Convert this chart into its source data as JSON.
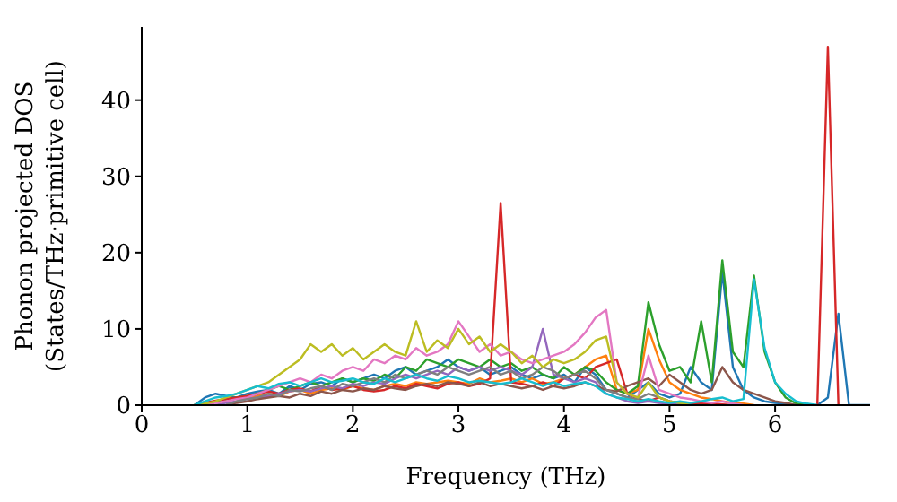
{
  "chart_data": {
    "type": "line",
    "xlabel": "Frequency (THz)",
    "ylabel": "Phonon projected DOS\n(States/THz·primitive cell)",
    "x": [
      0.5,
      0.6,
      0.7,
      0.8,
      0.9,
      1,
      1.1,
      1.2,
      1.3,
      1.4,
      1.5,
      1.6,
      1.7,
      1.8,
      1.9,
      2,
      2.1,
      2.2,
      2.3,
      2.4,
      2.5,
      2.6,
      2.7,
      2.8,
      2.9,
      3,
      3.1,
      3.2,
      3.3,
      3.4,
      3.5,
      3.6,
      3.7,
      3.8,
      3.9,
      4,
      4.1,
      4.2,
      4.3,
      4.4,
      4.5,
      4.6,
      4.7,
      4.8,
      4.9,
      5,
      5.1,
      5.2,
      5.3,
      5.4,
      5.5,
      5.6,
      5.7,
      5.8,
      5.9,
      6,
      6.1,
      6.2,
      6.3,
      6.4,
      6.5,
      6.6,
      6.7,
      6.8,
      6.9
    ],
    "series": [
      {
        "color": "#1f77b4",
        "values": [
          0,
          1,
          1.5,
          1.2,
          1,
          1.5,
          1.8,
          2,
          1.5,
          2.5,
          2,
          2.8,
          3,
          2.5,
          3.5,
          3,
          3.5,
          4,
          3.5,
          4.5,
          5,
          4,
          4.5,
          5,
          6,
          5,
          4.5,
          5,
          4,
          4.5,
          5,
          4,
          3.5,
          4,
          3.5,
          4,
          3,
          5,
          4,
          2,
          1.5,
          1,
          2,
          3,
          1.5,
          1,
          1.5,
          5,
          3,
          2,
          17.5,
          5,
          2,
          1,
          0.5,
          0.3,
          0.2,
          0,
          0,
          0,
          1,
          12,
          0,
          0,
          0
        ]
      },
      {
        "color": "#ff7f0e",
        "values": [
          null,
          null,
          null,
          null,
          0.8,
          1,
          1.2,
          1.5,
          1.2,
          1.8,
          2,
          1.5,
          2,
          2.2,
          2,
          2.5,
          2.2,
          2,
          2.5,
          2.8,
          2.5,
          3,
          2.8,
          3,
          3.2,
          3,
          2.8,
          3.5,
          3,
          3.2,
          3.5,
          3,
          3.5,
          2.8,
          3,
          3.5,
          4,
          5,
          6,
          6.5,
          2,
          1.5,
          2,
          10,
          6,
          3,
          2,
          1.5,
          1,
          0.8,
          0.5,
          0.3,
          0.2,
          0,
          null,
          null,
          null,
          null,
          null,
          null,
          null,
          null,
          null,
          null,
          null
        ]
      },
      {
        "color": "#2ca02c",
        "values": [
          0,
          0.3,
          0.5,
          0.8,
          1,
          1.2,
          1.5,
          2,
          2.5,
          2,
          2.5,
          3,
          2.5,
          3,
          3.5,
          3,
          3.5,
          3.2,
          4,
          3.5,
          5,
          4.5,
          6,
          5.5,
          5,
          6,
          5.5,
          5,
          6,
          5,
          5.5,
          4.5,
          5,
          4,
          3.5,
          5,
          4,
          5,
          4.5,
          3,
          2,
          1.5,
          2.5,
          13.5,
          8,
          4.5,
          5,
          3,
          11,
          3,
          19,
          7,
          5,
          17,
          7,
          3,
          1,
          0.2,
          0,
          null,
          null,
          null,
          null,
          null,
          null
        ]
      },
      {
        "color": "#d62728",
        "values": [
          0,
          0.3,
          0.6,
          0.8,
          1,
          1.2,
          1.5,
          1.8,
          1.5,
          2,
          2.2,
          1.8,
          2.5,
          2,
          2.2,
          2.5,
          2,
          1.8,
          2,
          2.5,
          2.2,
          2.8,
          2.5,
          2.2,
          2.8,
          3,
          2.5,
          2.8,
          3.5,
          26.5,
          3,
          2.8,
          2.5,
          3,
          2.5,
          3.5,
          4,
          3.5,
          5,
          5.5,
          6,
          1.5,
          0.8,
          0.5,
          1,
          0.5,
          0.3,
          0.2,
          0.3,
          0.2,
          0.1,
          0,
          null,
          null,
          null,
          null,
          null,
          null,
          null,
          0,
          47,
          0,
          null,
          null,
          null
        ]
      },
      {
        "color": "#9467bd",
        "values": [
          null,
          null,
          0,
          0.3,
          0.5,
          0.8,
          1,
          1.2,
          1.5,
          1.8,
          2,
          1.8,
          2.2,
          2.5,
          2.2,
          2.8,
          2.5,
          3,
          2.8,
          3.5,
          4,
          3.5,
          4,
          4.5,
          4,
          5,
          4.5,
          5,
          4.5,
          5,
          4.5,
          4,
          5,
          10,
          4,
          3.5,
          3,
          3.5,
          3,
          1.5,
          1,
          0.5,
          0.3,
          0.5,
          0.3,
          0.2,
          0,
          null,
          null,
          null,
          null,
          null,
          null,
          null,
          null,
          null,
          null,
          null,
          null,
          null,
          null,
          null,
          null,
          null,
          null
        ]
      },
      {
        "color": "#8c564b",
        "values": [
          null,
          null,
          null,
          0,
          0.3,
          0.5,
          0.8,
          1,
          1.2,
          1,
          1.5,
          1.2,
          1.8,
          1.5,
          2,
          1.8,
          2.2,
          2,
          2.5,
          2.2,
          2,
          2.5,
          2.8,
          2.5,
          3,
          2.8,
          2.5,
          3,
          2.5,
          2.8,
          2.5,
          2.2,
          2.5,
          2,
          2.5,
          2.2,
          2.5,
          3,
          2.5,
          2,
          1.8,
          2.5,
          3,
          3.5,
          2.5,
          4,
          3,
          2,
          1.5,
          2,
          5,
          3,
          2,
          1.5,
          1,
          0.5,
          0.3,
          0,
          null,
          null,
          null,
          null,
          null,
          null,
          null
        ]
      },
      {
        "color": "#e377c2",
        "values": [
          null,
          0,
          0.3,
          0.5,
          0.8,
          1,
          1.5,
          2,
          2.5,
          3,
          3.5,
          3,
          4,
          3.5,
          4.5,
          5,
          4.5,
          6,
          5.5,
          6.5,
          6,
          7.5,
          6.5,
          7,
          8,
          11,
          9,
          7,
          8,
          6.5,
          7,
          6,
          5.5,
          6,
          6.5,
          7,
          8,
          9.5,
          11.5,
          12.5,
          3,
          1.5,
          1,
          6.5,
          2,
          1.5,
          1,
          0.8,
          0.5,
          0.3,
          0.5,
          0.2,
          0,
          null,
          null,
          null,
          null,
          null,
          null,
          null,
          null,
          null,
          null,
          null,
          null
        ]
      },
      {
        "color": "#7f7f7f",
        "values": [
          null,
          null,
          null,
          0,
          0.5,
          0.8,
          1,
          1.5,
          1.2,
          2,
          1.8,
          2.2,
          2.5,
          2,
          2.8,
          2.5,
          3,
          3.5,
          3,
          4,
          3.5,
          4,
          4.5,
          4,
          5,
          4.5,
          4,
          4.5,
          5,
          4,
          4.5,
          3.5,
          4,
          5,
          4.5,
          3.5,
          4,
          4.5,
          3.5,
          2,
          1.5,
          1,
          0.8,
          1.5,
          1,
          0.5,
          0.3,
          0,
          null,
          null,
          null,
          null,
          null,
          null,
          null,
          null,
          null,
          null,
          null,
          null,
          null,
          null,
          null,
          null,
          null
        ]
      },
      {
        "color": "#bcbd22",
        "values": [
          0,
          0.2,
          0.5,
          1,
          1.5,
          2,
          2.5,
          3,
          4,
          5,
          6,
          8,
          7,
          8,
          6.5,
          7.5,
          6,
          7,
          8,
          7,
          6.5,
          11,
          7,
          8.5,
          7.5,
          10,
          8,
          9,
          7,
          8,
          7,
          5.5,
          6.5,
          5,
          6,
          5.5,
          6,
          7,
          8.5,
          9,
          3,
          1.5,
          1,
          3,
          1,
          0.5,
          0.3,
          0,
          null,
          null,
          null,
          null,
          null,
          null,
          null,
          null,
          null,
          null,
          null,
          null,
          null,
          null,
          null,
          null,
          null
        ]
      },
      {
        "color": "#17becf",
        "values": [
          0,
          0.5,
          1,
          1.2,
          1.5,
          2,
          2.5,
          2.2,
          2.8,
          3,
          2.5,
          3,
          3.5,
          3,
          3.2,
          3.5,
          3,
          2.8,
          3.5,
          3,
          3.5,
          4,
          3.5,
          3.2,
          3.8,
          3.5,
          3,
          3.2,
          3,
          2.8,
          3,
          3.5,
          3,
          2.5,
          3,
          2.5,
          2.8,
          3,
          2.5,
          1.5,
          1,
          0.8,
          0.5,
          0.8,
          0.5,
          0.3,
          0.5,
          0.3,
          0.5,
          0.8,
          1,
          0.5,
          0.8,
          16.5,
          7.5,
          3,
          1.5,
          0.5,
          0.2,
          0,
          null,
          null,
          null,
          null,
          null
        ]
      }
    ],
    "xlim": [
      0,
      6.9
    ],
    "xticks": [
      0,
      1,
      2,
      3,
      4,
      5,
      6
    ],
    "ylim": [
      0,
      49.6
    ],
    "yticks": [
      0,
      10,
      20,
      30,
      40
    ],
    "grid": false,
    "legend": false,
    "marker": "none",
    "line_style": "solid"
  }
}
